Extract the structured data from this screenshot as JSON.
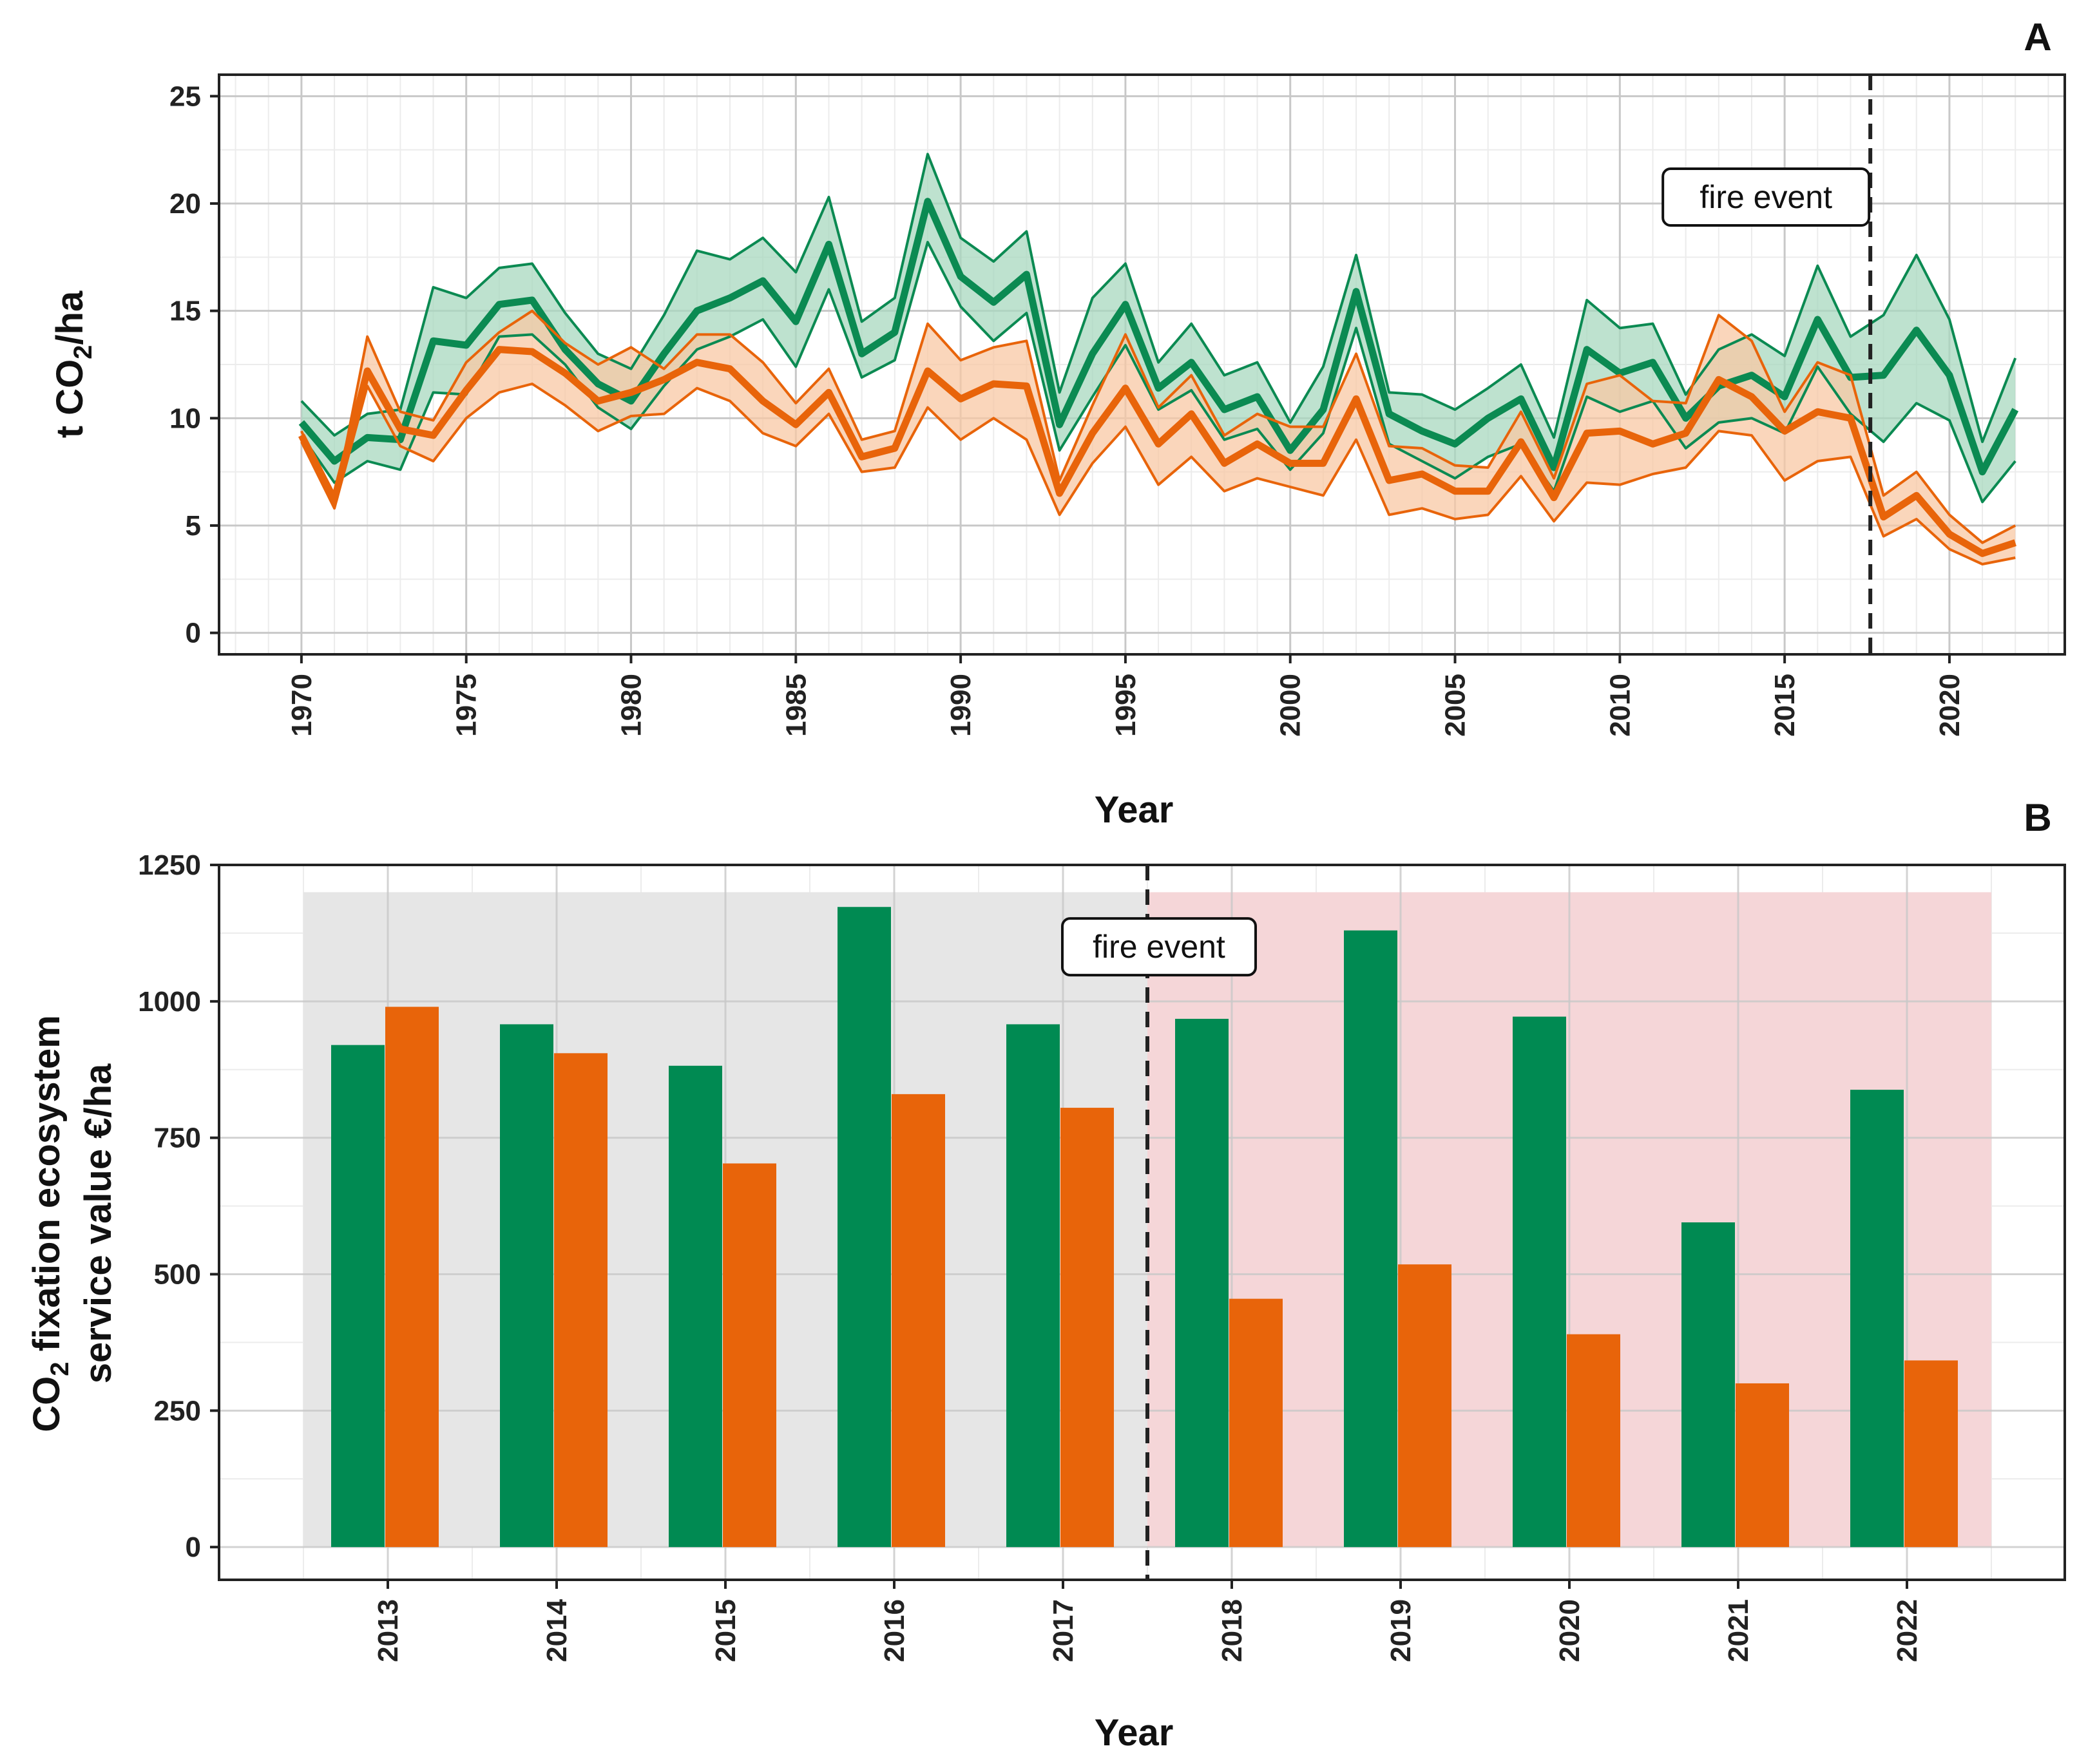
{
  "chart_data": [
    {
      "panel_label": "A",
      "type": "line",
      "xlabel": "Year",
      "ylabel": "t CO2/ha",
      "ylabel_parts": {
        "pre": "t CO",
        "sub": "2",
        "post": "/ha"
      },
      "xlim": [
        1967.5,
        2023.5
      ],
      "ylim": [
        -1,
        26
      ],
      "xticks": [
        1970,
        1975,
        1980,
        1985,
        1990,
        1995,
        2000,
        2005,
        2010,
        2015,
        2020
      ],
      "yticks": [
        0,
        5,
        10,
        15,
        20,
        25
      ],
      "grid": true,
      "annotation": {
        "text": "fire event",
        "x": 2017.6
      },
      "x": [
        1970,
        1971,
        1972,
        1973,
        1974,
        1975,
        1976,
        1977,
        1978,
        1979,
        1980,
        1981,
        1982,
        1983,
        1984,
        1985,
        1986,
        1987,
        1988,
        1989,
        1990,
        1991,
        1992,
        1993,
        1994,
        1995,
        1996,
        1997,
        1998,
        1999,
        2000,
        2001,
        2002,
        2003,
        2004,
        2005,
        2006,
        2007,
        2008,
        2009,
        2010,
        2011,
        2012,
        2013,
        2014,
        2015,
        2016,
        2017,
        2018,
        2019,
        2020,
        2021,
        2022
      ],
      "series": [
        {
          "color": "#0b8a52",
          "fill": "#a8d8bf",
          "mean": [
            9.8,
            8.0,
            9.1,
            9.0,
            13.6,
            13.4,
            15.3,
            15.5,
            13.2,
            11.6,
            10.8,
            13.0,
            15.0,
            15.6,
            16.4,
            14.5,
            18.1,
            13.0,
            14.0,
            20.1,
            16.6,
            15.4,
            16.7,
            9.7,
            13.0,
            15.3,
            11.4,
            12.6,
            10.4,
            11.0,
            8.5,
            10.4,
            15.9,
            10.2,
            9.4,
            8.8,
            10.0,
            10.9,
            7.7,
            13.2,
            12.1,
            12.6,
            10.0,
            11.5,
            12.0,
            11.0,
            14.6,
            11.9,
            12.0,
            14.1,
            12.0,
            7.5,
            10.4
          ],
          "lower": [
            9.2,
            7.0,
            8.0,
            7.6,
            11.2,
            11.1,
            13.8,
            13.9,
            12.5,
            10.5,
            9.5,
            11.5,
            13.2,
            13.8,
            14.6,
            12.4,
            16.0,
            11.9,
            12.7,
            18.2,
            15.2,
            13.6,
            14.9,
            8.5,
            11.0,
            13.4,
            10.4,
            11.3,
            9.0,
            9.5,
            7.6,
            9.3,
            14.2,
            8.8,
            8.0,
            7.2,
            8.2,
            8.8,
            6.6,
            11.0,
            10.3,
            10.8,
            8.6,
            9.8,
            10.0,
            9.3,
            12.4,
            10.2,
            8.9,
            10.7,
            9.9,
            6.1,
            8.0
          ],
          "upper": [
            10.8,
            9.2,
            10.2,
            10.4,
            16.1,
            15.6,
            17.0,
            17.2,
            14.9,
            13.0,
            12.3,
            14.8,
            17.8,
            17.4,
            18.4,
            16.8,
            20.3,
            14.5,
            15.6,
            22.3,
            18.4,
            17.3,
            18.7,
            11.2,
            15.6,
            17.2,
            12.6,
            14.4,
            12.0,
            12.6,
            9.8,
            12.4,
            17.6,
            11.2,
            11.1,
            10.4,
            11.4,
            12.5,
            9.1,
            15.5,
            14.2,
            14.4,
            11.1,
            13.2,
            13.9,
            12.9,
            17.1,
            13.8,
            14.8,
            17.6,
            14.6,
            8.9,
            12.8
          ]
        },
        {
          "color": "#e8640a",
          "fill": "#f8c8a4",
          "mean": [
            9.2,
            6.2,
            12.2,
            9.5,
            9.2,
            11.3,
            13.2,
            13.1,
            12.1,
            10.8,
            11.2,
            11.8,
            12.6,
            12.3,
            10.8,
            9.7,
            11.2,
            8.2,
            8.6,
            12.2,
            10.9,
            11.6,
            11.5,
            6.5,
            9.3,
            11.4,
            8.8,
            10.2,
            7.9,
            8.8,
            7.9,
            7.9,
            10.9,
            7.1,
            7.4,
            6.6,
            6.6,
            8.9,
            6.3,
            9.3,
            9.4,
            8.8,
            9.3,
            11.8,
            11.0,
            9.4,
            10.3,
            10.0,
            5.4,
            6.4,
            4.6,
            3.7,
            4.2
          ],
          "lower": [
            8.9,
            5.8,
            11.5,
            8.7,
            8.0,
            10.0,
            11.2,
            11.6,
            10.6,
            9.4,
            10.1,
            10.2,
            11.4,
            10.8,
            9.3,
            8.7,
            10.2,
            7.5,
            7.7,
            10.5,
            9.0,
            10.0,
            9.0,
            5.5,
            7.9,
            9.6,
            6.9,
            8.2,
            6.6,
            7.2,
            6.8,
            6.4,
            9.0,
            5.5,
            5.8,
            5.3,
            5.5,
            7.3,
            5.2,
            7.0,
            6.9,
            7.4,
            7.7,
            9.4,
            9.2,
            7.1,
            8.0,
            8.2,
            4.5,
            5.3,
            3.9,
            3.2,
            3.5
          ],
          "upper": [
            9.4,
            6.0,
            13.8,
            10.3,
            9.9,
            12.6,
            14.0,
            15.0,
            13.5,
            12.5,
            13.3,
            12.3,
            13.9,
            13.9,
            12.6,
            10.7,
            12.3,
            9.0,
            9.4,
            14.4,
            12.7,
            13.3,
            13.6,
            7.1,
            10.6,
            13.9,
            10.5,
            12.0,
            9.2,
            10.2,
            9.6,
            9.6,
            13.0,
            8.7,
            8.6,
            7.8,
            7.7,
            10.3,
            7.2,
            11.6,
            12.0,
            10.8,
            10.7,
            14.8,
            13.6,
            10.3,
            12.6,
            12.0,
            6.4,
            7.5,
            5.5,
            4.2,
            5.0
          ]
        }
      ]
    },
    {
      "panel_label": "B",
      "type": "bar",
      "xlabel": "Year",
      "ylabel": "CO2 fixation ecosystem service value €/ha",
      "ylabel_line1_parts": {
        "pre": "CO",
        "sub": "2",
        "post": " fixation ecosystem"
      },
      "ylabel_line2": "service value €/ha",
      "ylim": [
        -60,
        1250
      ],
      "yticks": [
        0,
        250,
        500,
        750,
        1000,
        1250
      ],
      "grid": true,
      "annotation": {
        "text": "fire event",
        "after_index": 4
      },
      "categories": [
        "2013",
        "2014",
        "2015",
        "2016",
        "2017",
        "2018",
        "2019",
        "2020",
        "2021",
        "2022"
      ],
      "background_regions": [
        {
          "from_index": 0,
          "to_index": 4,
          "color": "#e6e6e6",
          "top": 1200
        },
        {
          "from_index": 5,
          "to_index": 9,
          "color": "#f5d6d8",
          "top": 1200
        }
      ],
      "series": [
        {
          "color": "#008a52",
          "values": [
            920,
            958,
            882,
            1173,
            958,
            968,
            1130,
            972,
            595,
            838
          ]
        },
        {
          "color": "#e8640a",
          "values": [
            990,
            905,
            703,
            830,
            805,
            455,
            518,
            390,
            300,
            342
          ]
        }
      ]
    }
  ]
}
